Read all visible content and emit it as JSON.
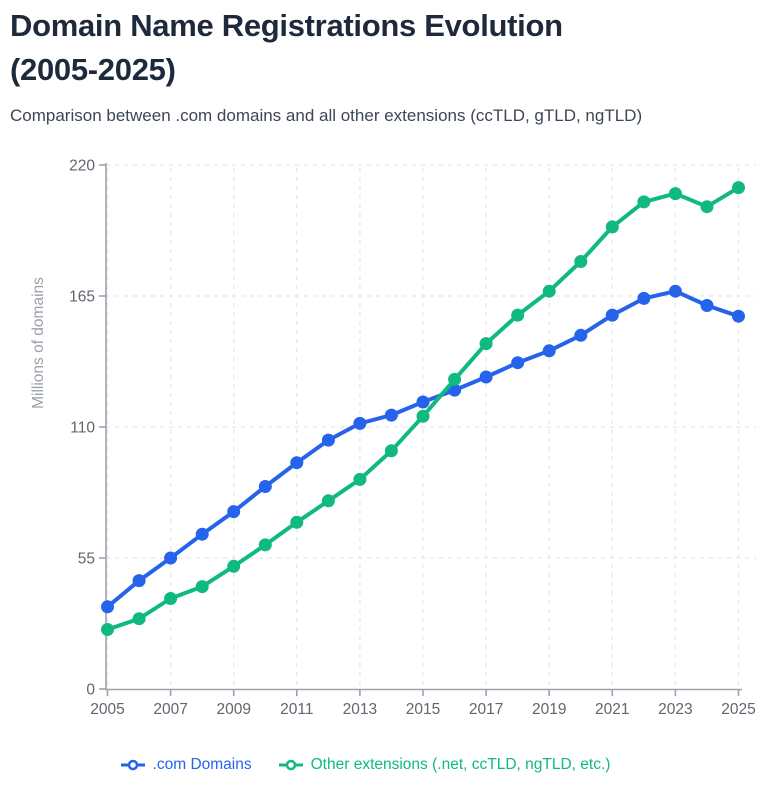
{
  "header": {
    "title_line1": "Domain Name Registrations Evolution",
    "title_line2": "(2005-2025)",
    "subtitle": "Comparison between .com domains and all other extensions (ccTLD, gTLD, ngTLD)"
  },
  "chart_data": {
    "type": "line",
    "title": "Domain Name Registrations Evolution (2005-2025)",
    "xlabel": "",
    "ylabel": "Millions of domains",
    "ylim": [
      0,
      220
    ],
    "yticks": [
      0,
      55,
      110,
      165,
      220
    ],
    "xticks": [
      2005,
      2007,
      2009,
      2011,
      2013,
      2015,
      2017,
      2019,
      2021,
      2023,
      2025
    ],
    "grid": true,
    "grid_style": "dashed",
    "legend_position": "bottom",
    "x": [
      2005,
      2006,
      2007,
      2008,
      2009,
      2010,
      2011,
      2012,
      2013,
      2014,
      2015,
      2016,
      2017,
      2018,
      2019,
      2020,
      2021,
      2022,
      2023,
      2024,
      2025
    ],
    "series": [
      {
        "name": ".com Domains",
        "color": "#2563eb",
        "values": [
          34.5,
          45.5,
          55,
          65,
          74.5,
          85,
          95,
          104.5,
          111.5,
          115,
          120.5,
          125.5,
          131,
          137,
          142,
          148.5,
          157,
          164,
          167,
          161,
          156.5
        ]
      },
      {
        "name": "Other extensions (.net, ccTLD, ngTLD, etc.)",
        "color": "#10b981",
        "values": [
          25,
          29.5,
          38,
          43,
          51.5,
          60.5,
          70,
          79,
          88,
          100,
          114.5,
          130,
          145,
          157,
          167,
          179.5,
          194,
          204.5,
          208,
          202.5,
          210.5
        ]
      }
    ],
    "colors": {
      "axis": "#9ca3af",
      "tick_label": "#60666e",
      "gridline": "#e5e7eb",
      "background": "#ffffff"
    }
  }
}
